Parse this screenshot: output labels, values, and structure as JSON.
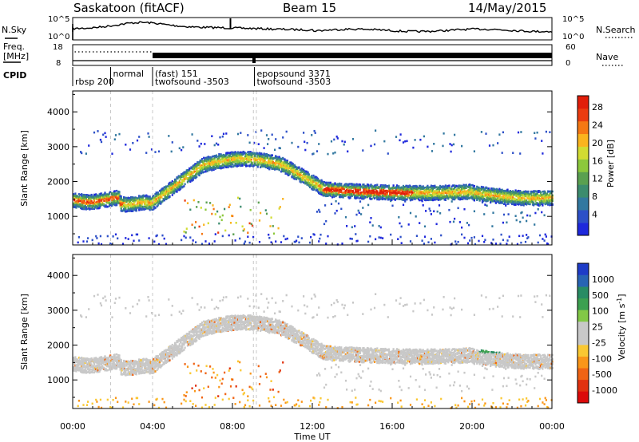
{
  "header": {
    "station": "Saskatoon (fitACF)",
    "beam": "Beam 15",
    "date": "14/May/2015"
  },
  "status_panel": {
    "nsky_label": "N.Sky",
    "nsky_ticks": [
      "10^5",
      "10^0"
    ],
    "nsearch_label": "N.Search",
    "nsearch_ticks": [
      "10^5",
      "10^0"
    ],
    "freq_label": "Freq.",
    "freq_unit": "[MHz]",
    "freq_ticks": [
      "18",
      "8"
    ],
    "nave_label": "Nave",
    "nave_ticks": [
      "60",
      "0"
    ],
    "cpid_label": "CPID",
    "cpid_segments": [
      {
        "start_hr": 0.0,
        "line1": "",
        "line2": "rbsp 200"
      },
      {
        "start_hr": 1.9,
        "line1": "normal",
        "line2": ""
      },
      {
        "start_hr": 4.0,
        "line1": "(fast) 151",
        "line2": "twofsound -3503"
      },
      {
        "start_hr": 9.1,
        "line1": "epopsound 3371",
        "line2": "twofsound -3503"
      }
    ]
  },
  "chart_data": [
    {
      "type": "heatmap",
      "name": "power",
      "ylabel": "Slant Range [km]",
      "ylim": [
        180,
        4600
      ],
      "yticks": [
        1000,
        2000,
        3000,
        4000
      ],
      "xlim": [
        0,
        24
      ],
      "colorbar_label": "Power [dB]",
      "colorbar_ticks": [
        "4",
        "8",
        "12",
        "16",
        "20",
        "24",
        "28"
      ],
      "colorbar_colors": [
        "#1e28dc",
        "#2d50c8",
        "#3278a0",
        "#3c8c6e",
        "#5aa050",
        "#8cc83c",
        "#d2dc32",
        "#fab41e",
        "#f57814",
        "#eb3c0f",
        "#e11e0a"
      ]
    },
    {
      "type": "heatmap",
      "name": "velocity",
      "ylabel": "Slant Range [km]",
      "ylim": [
        180,
        4600
      ],
      "yticks": [
        1000,
        2000,
        3000,
        4000
      ],
      "xlim": [
        0,
        24
      ],
      "xlabel": "Time UT",
      "xticks": [
        "00:00",
        "04:00",
        "08:00",
        "12:00",
        "16:00",
        "20:00",
        "00:00"
      ],
      "colorbar_label": "Velocity [m s",
      "colorbar_label_sup": "-1",
      "colorbar_label_end": "]",
      "colorbar_ticks": [
        "1000",
        "500",
        "100",
        "25",
        "-25",
        "-100",
        "-500",
        "-1000"
      ],
      "colorbar_colors": [
        "#1e3cc8",
        "#2864b4",
        "#288c64",
        "#3ca050",
        "#82c846",
        "#c8c8c8",
        "#c8c8c8",
        "#fac832",
        "#fa9619",
        "#f06414",
        "#e1320f",
        "#dc0a0a"
      ]
    }
  ]
}
